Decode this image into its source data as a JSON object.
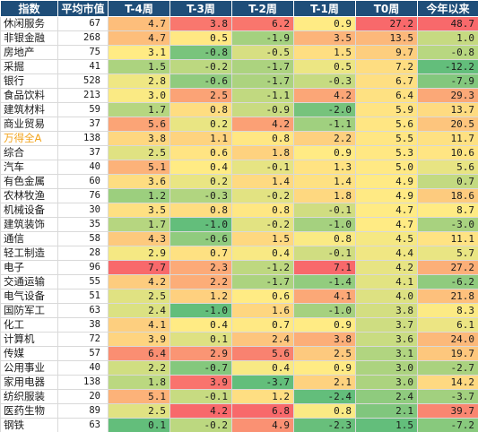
{
  "header": {
    "name": "指数",
    "cap": "平均市值",
    "t4": "T-4周",
    "t3": "T-3周",
    "t2": "T-2周",
    "t1": "T-1周",
    "t0": "T0周",
    "ytd": "今年以来"
  },
  "rows": [
    {
      "name": "休闲服务",
      "cap": "67",
      "t4": "4.7",
      "t3": "3.8",
      "t2": "6.2",
      "t1": "0.9",
      "t0": "27.2",
      "ytd": "48.7"
    },
    {
      "name": "非银金融",
      "cap": "268",
      "t4": "4.7",
      "t3": "0.5",
      "t2": "-1.9",
      "t1": "3.5",
      "t0": "13.5",
      "ytd": "1.0"
    },
    {
      "name": "房地产",
      "cap": "75",
      "t4": "3.1",
      "t3": "-0.8",
      "t2": "-0.5",
      "t1": "1.5",
      "t0": "9.7",
      "ytd": "-0.8"
    },
    {
      "name": "采掘",
      "cap": "41",
      "t4": "1.5",
      "t3": "-0.2",
      "t2": "-1.7",
      "t1": "0.5",
      "t0": "7.2",
      "ytd": "-12.2"
    },
    {
      "name": "银行",
      "cap": "528",
      "t4": "2.8",
      "t3": "-0.6",
      "t2": "-1.7",
      "t1": "-0.3",
      "t0": "6.7",
      "ytd": "-7.9"
    },
    {
      "name": "食品饮料",
      "cap": "213",
      "t4": "3.0",
      "t3": "2.5",
      "t2": "-1.1",
      "t1": "4.2",
      "t0": "6.4",
      "ytd": "29.3"
    },
    {
      "name": "建筑材料",
      "cap": "59",
      "t4": "1.7",
      "t3": "0.8",
      "t2": "-0.9",
      "t1": "-2.0",
      "t0": "5.9",
      "ytd": "13.7"
    },
    {
      "name": "商业贸易",
      "cap": "37",
      "t4": "5.6",
      "t3": "0.2",
      "t2": "4.2",
      "t1": "-1.1",
      "t0": "5.6",
      "ytd": "20.5"
    },
    {
      "name": "万得全A",
      "cap": "138",
      "t4": "3.8",
      "t3": "1.1",
      "t2": "0.8",
      "t1": "2.2",
      "t0": "5.5",
      "ytd": "11.7",
      "highlight": true
    },
    {
      "name": "综合",
      "cap": "37",
      "t4": "2.5",
      "t3": "0.6",
      "t2": "1.8",
      "t1": "0.9",
      "t0": "5.3",
      "ytd": "10.6"
    },
    {
      "name": "汽车",
      "cap": "40",
      "t4": "5.1",
      "t3": "0.4",
      "t2": "-0.1",
      "t1": "1.3",
      "t0": "5.0",
      "ytd": "5.6"
    },
    {
      "name": "有色金属",
      "cap": "60",
      "t4": "3.6",
      "t3": "0.2",
      "t2": "1.4",
      "t1": "1.4",
      "t0": "4.9",
      "ytd": "0.7"
    },
    {
      "name": "农林牧渔",
      "cap": "76",
      "t4": "1.2",
      "t3": "-0.3",
      "t2": "-0.2",
      "t1": "1.8",
      "t0": "4.9",
      "ytd": "18.6"
    },
    {
      "name": "机械设备",
      "cap": "30",
      "t4": "3.5",
      "t3": "0.8",
      "t2": "0.8",
      "t1": "-0.1",
      "t0": "4.7",
      "ytd": "8.7"
    },
    {
      "name": "建筑装饰",
      "cap": "35",
      "t4": "1.7",
      "t3": "-1.0",
      "t2": "-0.2",
      "t1": "-1.0",
      "t0": "4.7",
      "ytd": "-3.0"
    },
    {
      "name": "通信",
      "cap": "58",
      "t4": "4.3",
      "t3": "-0.6",
      "t2": "1.5",
      "t1": "0.8",
      "t0": "4.5",
      "ytd": "11.1"
    },
    {
      "name": "轻工制造",
      "cap": "28",
      "t4": "2.9",
      "t3": "0.7",
      "t2": "0.4",
      "t1": "-0.1",
      "t0": "4.4",
      "ytd": "5.7"
    },
    {
      "name": "电子",
      "cap": "96",
      "t4": "7.7",
      "t3": "2.3",
      "t2": "-1.2",
      "t1": "7.1",
      "t0": "4.2",
      "ytd": "27.2"
    },
    {
      "name": "交通运输",
      "cap": "55",
      "t4": "4.2",
      "t3": "2.2",
      "t2": "-1.7",
      "t1": "-1.4",
      "t0": "4.1",
      "ytd": "-6.2"
    },
    {
      "name": "电气设备",
      "cap": "51",
      "t4": "2.5",
      "t3": "1.2",
      "t2": "0.6",
      "t1": "4.1",
      "t0": "4.0",
      "ytd": "21.8"
    },
    {
      "name": "国防军工",
      "cap": "63",
      "t4": "2.4",
      "t3": "-1.0",
      "t2": "1.6",
      "t1": "-1.0",
      "t0": "3.8",
      "ytd": "8.3"
    },
    {
      "name": "化工",
      "cap": "38",
      "t4": "4.1",
      "t3": "0.4",
      "t2": "0.7",
      "t1": "0.9",
      "t0": "3.7",
      "ytd": "6.1"
    },
    {
      "name": "计算机",
      "cap": "72",
      "t4": "3.9",
      "t3": "0.1",
      "t2": "2.4",
      "t1": "3.8",
      "t0": "3.6",
      "ytd": "24.0"
    },
    {
      "name": "传媒",
      "cap": "57",
      "t4": "6.4",
      "t3": "2.9",
      "t2": "5.6",
      "t1": "2.5",
      "t0": "3.1",
      "ytd": "19.7"
    },
    {
      "name": "公用事业",
      "cap": "40",
      "t4": "2.2",
      "t3": "-0.7",
      "t2": "0.4",
      "t1": "0.9",
      "t0": "3.0",
      "ytd": "-2.7"
    },
    {
      "name": "家用电器",
      "cap": "138",
      "t4": "1.8",
      "t3": "3.9",
      "t2": "-3.7",
      "t1": "2.1",
      "t0": "3.0",
      "ytd": "14.2"
    },
    {
      "name": "纺织服装",
      "cap": "20",
      "t4": "5.1",
      "t3": "-0.1",
      "t2": "1.2",
      "t1": "-2.4",
      "t0": "2.4",
      "ytd": "-3.7"
    },
    {
      "name": "医药生物",
      "cap": "89",
      "t4": "2.5",
      "t3": "4.2",
      "t2": "6.8",
      "t1": "0.8",
      "t0": "2.1",
      "ytd": "39.7"
    },
    {
      "name": "钢铁",
      "cap": "63",
      "t4": "0.1",
      "t3": "-0.2",
      "t2": "4.9",
      "t1": "-2.3",
      "t0": "1.5",
      "ytd": "-7.2"
    }
  ],
  "colors": {
    "header_bg": "#1f4e79",
    "header_text": "#ffffff",
    "high": "#f8696b",
    "mid": "#ffeb84",
    "low": "#63be7b",
    "highlight_text": "#f2a31a"
  }
}
